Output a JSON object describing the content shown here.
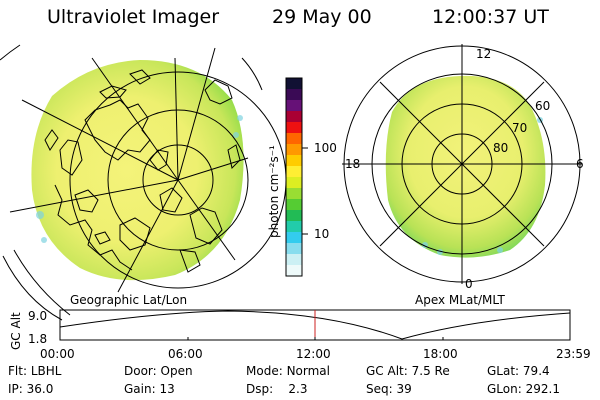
{
  "header": {
    "title": "Ultraviolet Imager",
    "date": "29 May 00",
    "time": "12:00:37 UT"
  },
  "left_map": {
    "caption": "Geographic Lat/Lon"
  },
  "colorbar": {
    "label": "photon cm⁻²s⁻¹",
    "ticks": [
      "100",
      "10"
    ],
    "colors": [
      "#111133",
      "#3a0a55",
      "#661177",
      "#aa0033",
      "#ee1111",
      "#ff6600",
      "#ff9900",
      "#ffcc00",
      "#ffee33",
      "#ddee22",
      "#99dd33",
      "#55cc33",
      "#22bb55",
      "#22ccaa",
      "#33ccee",
      "#88ddee",
      "#ccf0f4",
      "#eefafa"
    ]
  },
  "right_map": {
    "caption": "Apex MLat/MLT",
    "mlt_labels": {
      "top": "12",
      "left": "18",
      "right": "6",
      "bottom": "0"
    },
    "lat_labels": [
      "60",
      "70",
      "80"
    ]
  },
  "altitude_plot": {
    "ylabel": "GC Alt",
    "yticks": [
      "9.0",
      "1.8"
    ],
    "xticks": [
      "00:00",
      "06:00",
      "12:00",
      "18:00",
      "23:59"
    ],
    "marker_fraction": 0.5
  },
  "status": {
    "row1": [
      {
        "label": "Flt:",
        "value": "LBHL"
      },
      {
        "label": "Door:",
        "value": "Open"
      },
      {
        "label": "Mode:",
        "value": "Normal"
      },
      {
        "label": "GC Alt:",
        "value": "7.5 Re"
      },
      {
        "label": "GLat:",
        "value": "79.4"
      }
    ],
    "row2": [
      {
        "label": "IP:",
        "value": "36.0"
      },
      {
        "label": "Gain:",
        "value": "13"
      },
      {
        "label": "Dsp:",
        "value": "2.3"
      },
      {
        "label": "Seq:",
        "value": "39"
      },
      {
        "label": "GLon:",
        "value": "292.1"
      }
    ]
  }
}
